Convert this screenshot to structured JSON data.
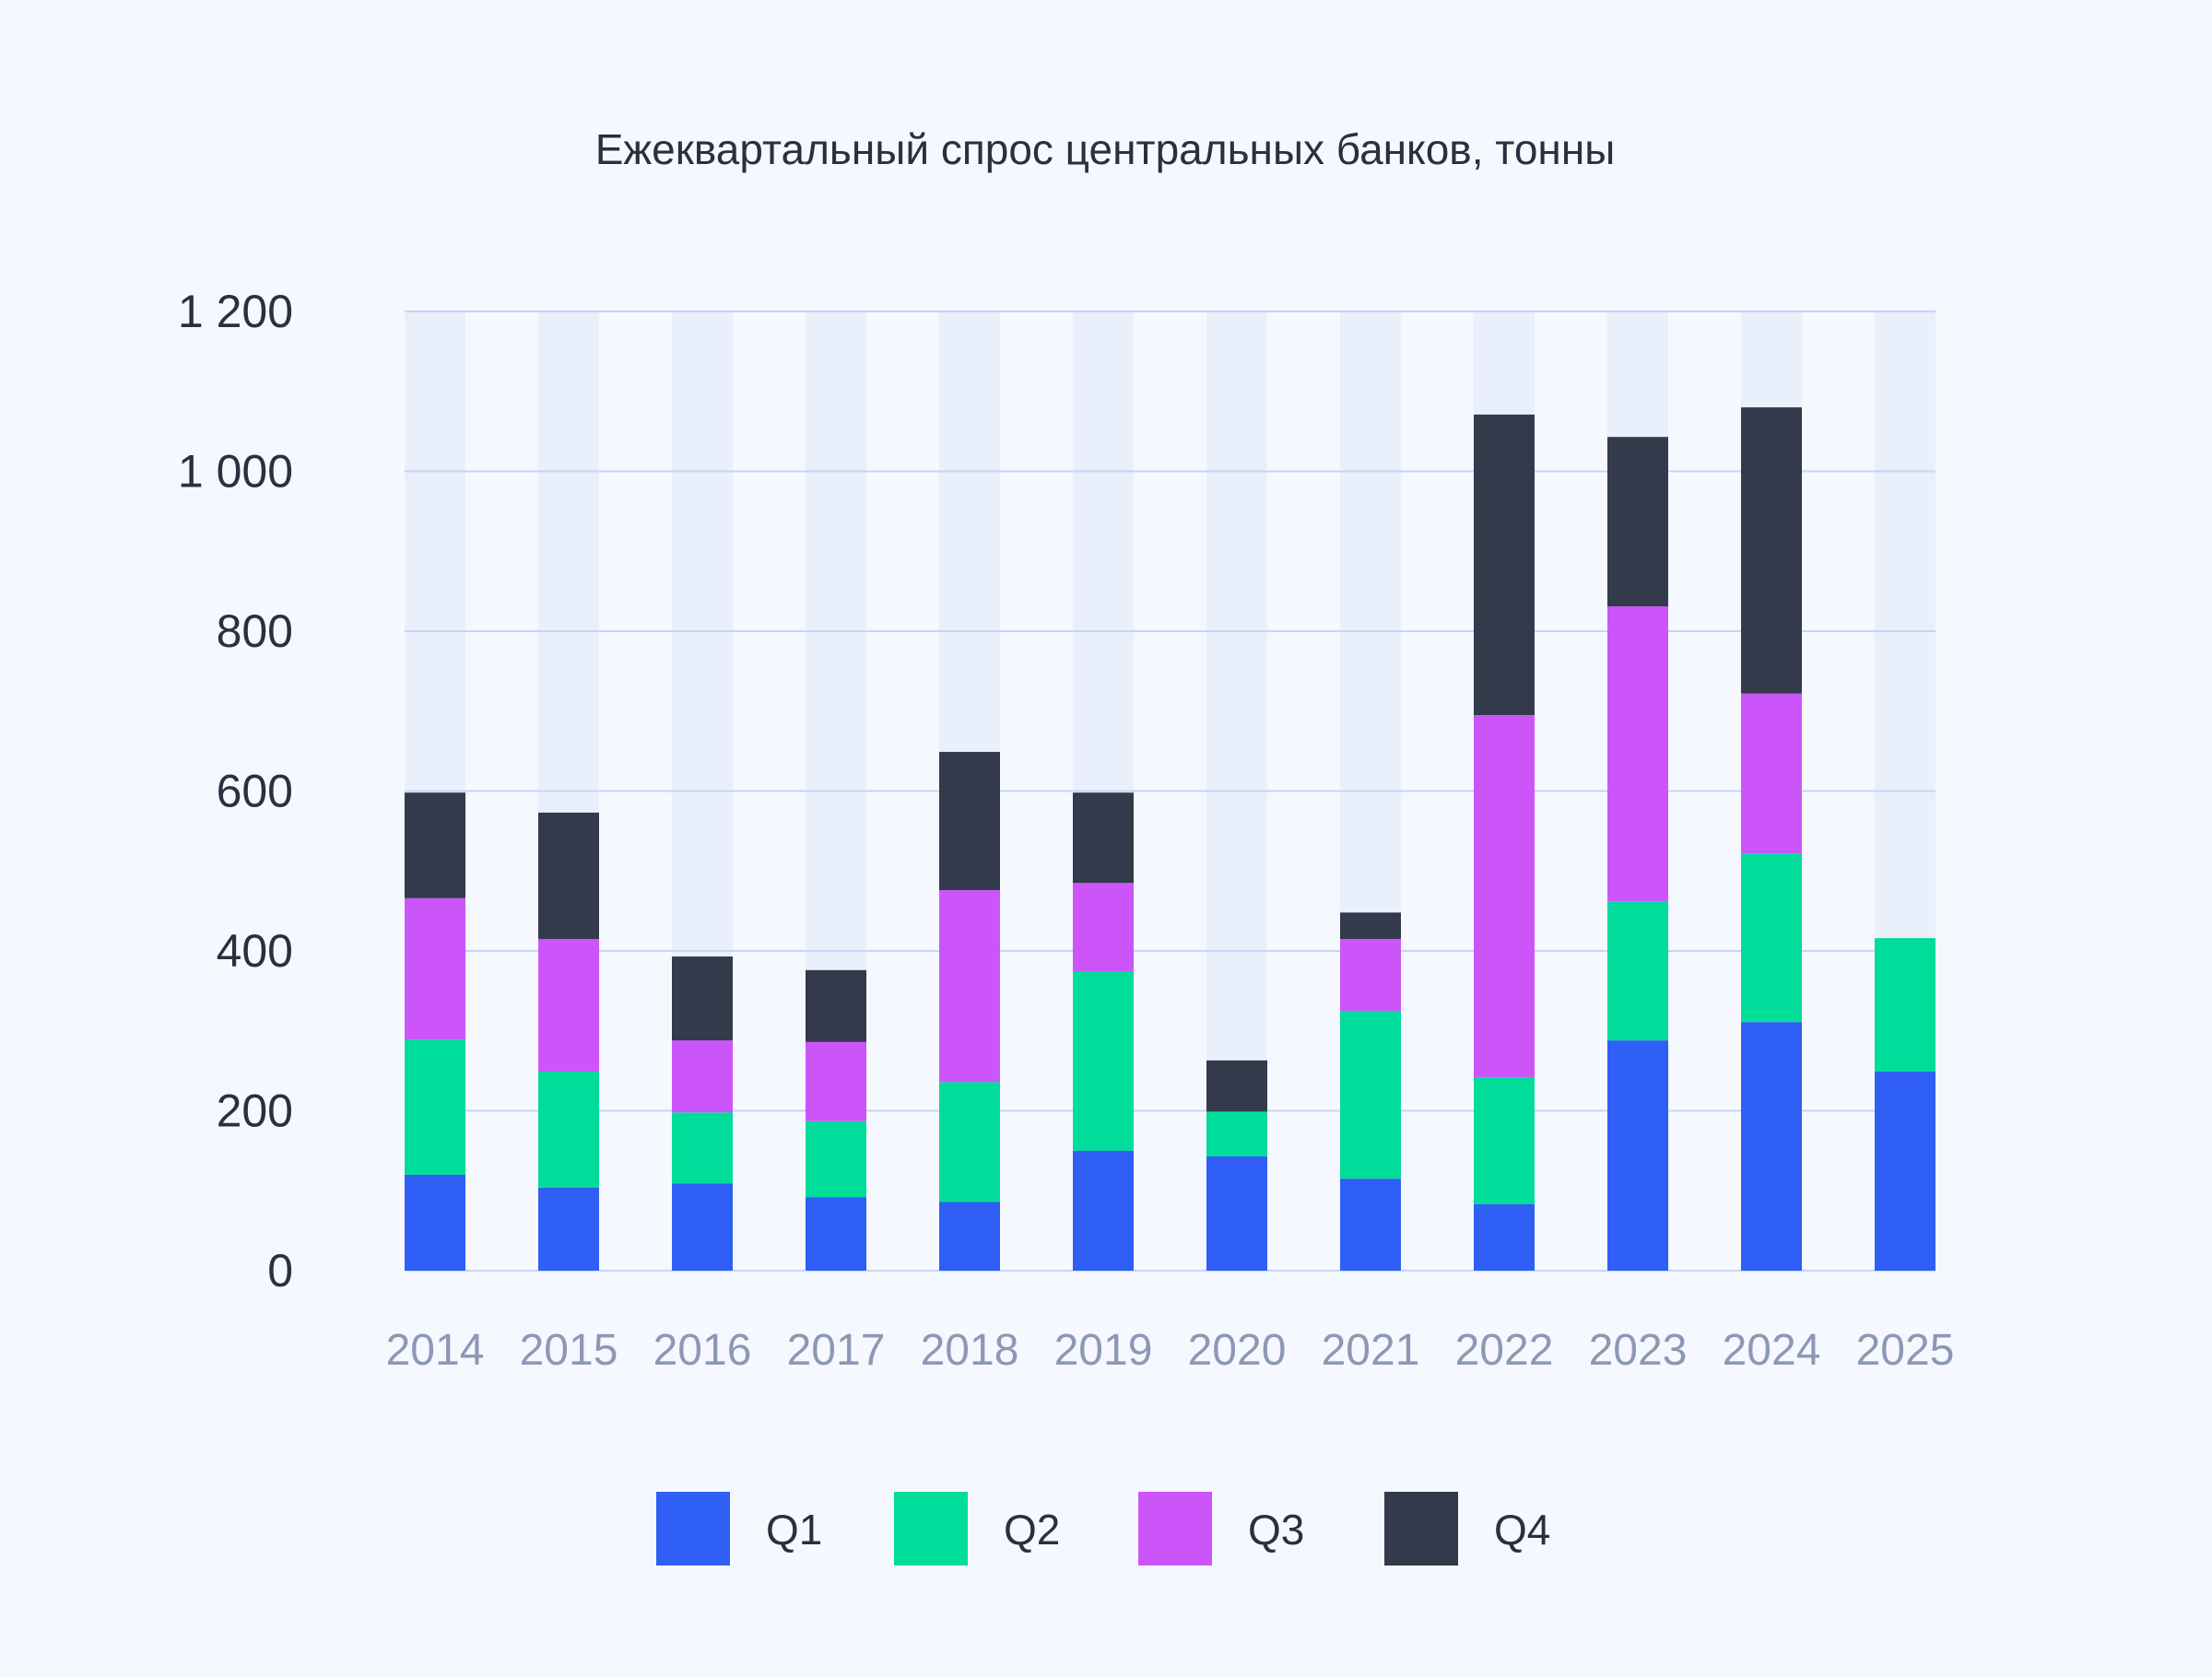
{
  "chart_data": {
    "type": "bar",
    "stacked": true,
    "title": "Ежеквартальный спрос центральных банков, тонны",
    "xlabel": "",
    "ylabel": "",
    "ylim": [
      0,
      1200
    ],
    "yticks": [
      0,
      200,
      400,
      600,
      800,
      1000,
      1200
    ],
    "ytick_labels": [
      "0",
      "200",
      "400",
      "600",
      "800",
      "1 000",
      "1 200"
    ],
    "grid": true,
    "legend_position": "bottom-center",
    "categories": [
      "2014",
      "2015",
      "2016",
      "2017",
      "2018",
      "2019",
      "2020",
      "2021",
      "2022",
      "2023",
      "2024",
      "2025"
    ],
    "series": [
      {
        "name": "Q1",
        "color": "#2f5ff5",
        "values": [
          120,
          104,
          109,
          92,
          86,
          150,
          143,
          115,
          83,
          288,
          311,
          249
        ]
      },
      {
        "name": "Q2",
        "color": "#00dd9a",
        "values": [
          169,
          145,
          89,
          95,
          150,
          224,
          56,
          210,
          159,
          174,
          211,
          167
        ]
      },
      {
        "name": "Q3",
        "color": "#cc55fa",
        "values": [
          177,
          166,
          90,
          99,
          240,
          111,
          0,
          90,
          453,
          369,
          200,
          null
        ]
      },
      {
        "name": "Q4",
        "color": "#323a4c",
        "values": [
          132,
          158,
          105,
          90,
          173,
          113,
          64,
          33,
          376,
          212,
          358,
          null
        ]
      }
    ]
  }
}
